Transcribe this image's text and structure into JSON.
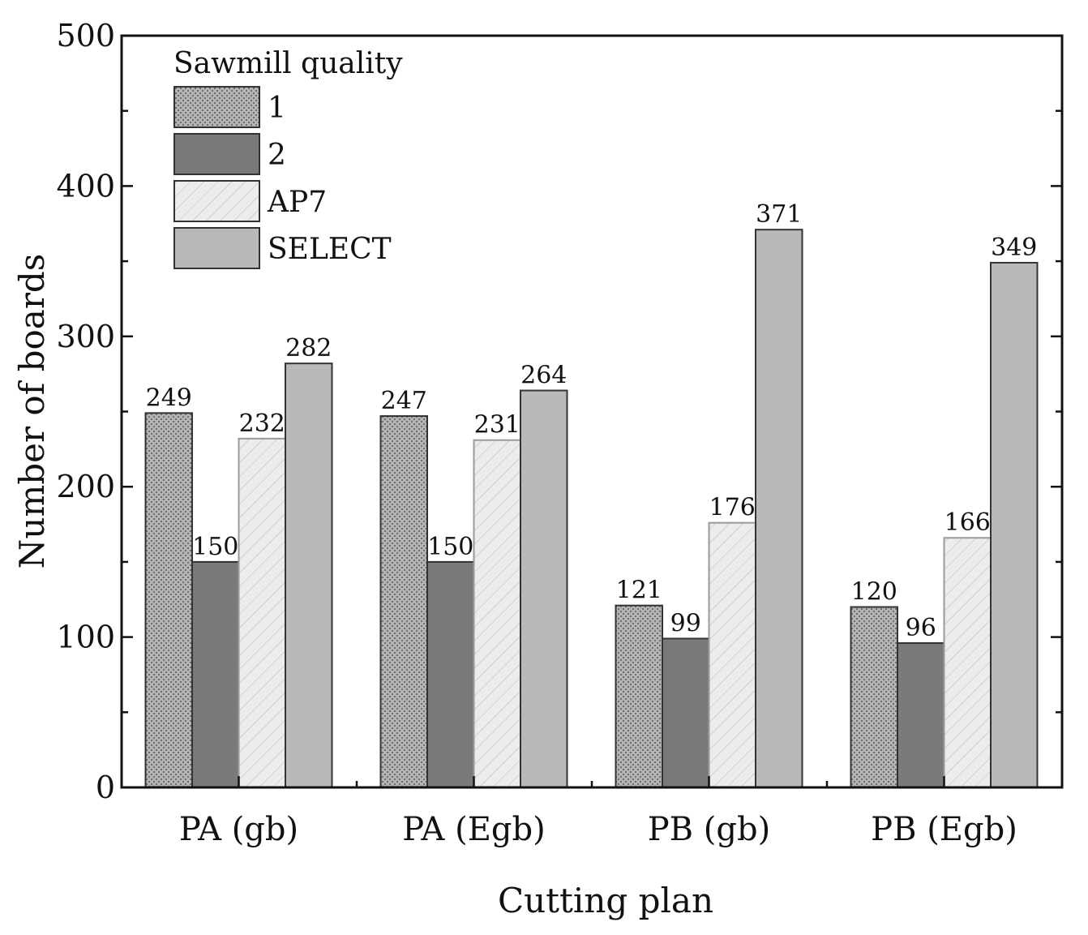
{
  "chart_data": {
    "type": "bar",
    "title": "",
    "xlabel": "Cutting plan",
    "ylabel": "Number of boards",
    "ylim": [
      0,
      500
    ],
    "yticks": [
      0,
      100,
      200,
      300,
      400,
      500
    ],
    "categories": [
      "PA (gb)",
      "PA (Egb)",
      "PB (gb)",
      "PB (Egb)"
    ],
    "legend": {
      "title": "Sawmill quality",
      "position": "top-left"
    },
    "series": [
      {
        "name": "1",
        "values": [
          249,
          247,
          121,
          120
        ],
        "color": "#a9a9a9",
        "pattern": "dots"
      },
      {
        "name": "2",
        "values": [
          150,
          150,
          99,
          96
        ],
        "color": "#7a7a7a",
        "pattern": "solid"
      },
      {
        "name": "AP7",
        "values": [
          232,
          231,
          176,
          166
        ],
        "color": "#e8e8e8",
        "pattern": "hatch"
      },
      {
        "name": "SELECT",
        "values": [
          282,
          264,
          371,
          349
        ],
        "color": "#b9b9b9",
        "pattern": "solid"
      }
    ]
  }
}
